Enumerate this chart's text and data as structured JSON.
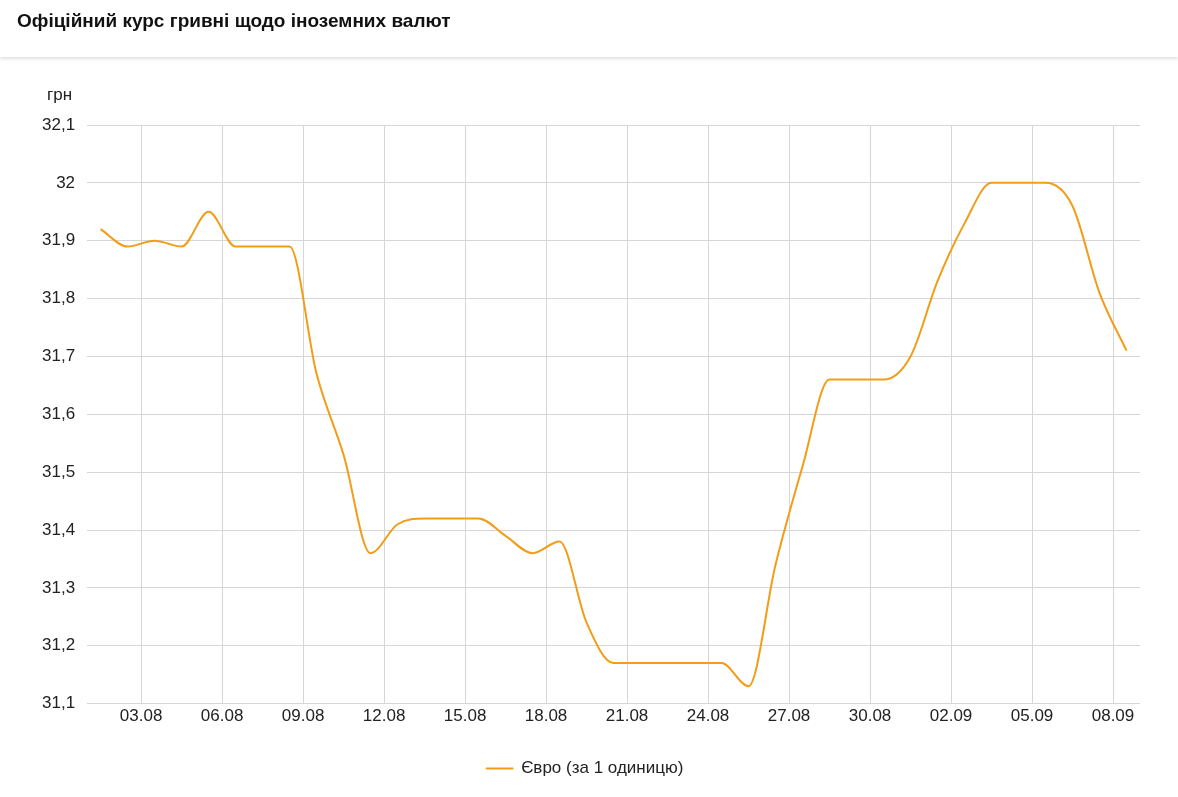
{
  "chart_data": {
    "type": "line",
    "title": "Офіційний курс гривні щодо іноземних валют",
    "ylabel": "грн",
    "x": [
      "--08-01T12:00",
      "--08-02T12:00",
      "--08-03T12:00",
      "--08-04T12:00",
      "--08-05T12:00",
      "--08-06T12:00",
      "--08-07T12:00",
      "--08-08T12:00",
      "--08-09T12:00",
      "--08-10T12:00",
      "--08-11T12:00",
      "--08-12T12:00",
      "--08-13T12:00",
      "--08-14T12:00",
      "--08-15T12:00",
      "--08-16T12:00",
      "--08-17T12:00",
      "--08-18T12:00",
      "--08-19T12:00",
      "--08-20T12:00",
      "--08-21T12:00",
      "--08-22T12:00",
      "--08-23T12:00",
      "--08-24T12:00",
      "--08-25T12:00",
      "--08-26T12:00",
      "--08-27T12:00",
      "--08-28T12:00",
      "--08-29T12:00",
      "--08-30T12:00",
      "--08-31T12:00",
      "--09-01T12:00",
      "--09-02T12:00",
      "--09-03T12:00",
      "--09-04T12:00",
      "--09-05T12:00",
      "--09-06T12:00",
      "--09-07T12:00",
      "--09-08T12:00"
    ],
    "series": [
      {
        "name": "Євро (за 1 одиницю)",
        "color": "#f29d17",
        "values": [
          31.92,
          31.89,
          31.9,
          31.89,
          31.95,
          31.89,
          31.89,
          31.89,
          31.67,
          31.53,
          31.36,
          31.41,
          31.42,
          31.42,
          31.42,
          31.39,
          31.36,
          31.38,
          31.24,
          31.17,
          31.17,
          31.17,
          31.17,
          31.17,
          31.13,
          31.34,
          31.51,
          31.66,
          31.66,
          31.66,
          31.7,
          31.83,
          31.93,
          32.0,
          32.0,
          32.0,
          31.96,
          31.81,
          31.71
        ]
      }
    ],
    "xlim": [
      "--08-01T00:00",
      "--09-09T00:00"
    ],
    "xticks": [
      {
        "value": "--08-03",
        "label": "03.08"
      },
      {
        "value": "--08-06",
        "label": "06.08"
      },
      {
        "value": "--08-09",
        "label": "09.08"
      },
      {
        "value": "--08-12",
        "label": "12.08"
      },
      {
        "value": "--08-15",
        "label": "15.08"
      },
      {
        "value": "--08-18",
        "label": "18.08"
      },
      {
        "value": "--08-21",
        "label": "21.08"
      },
      {
        "value": "--08-24",
        "label": "24.08"
      },
      {
        "value": "--08-27",
        "label": "27.08"
      },
      {
        "value": "--08-30",
        "label": "30.08"
      },
      {
        "value": "--09-02",
        "label": "02.09"
      },
      {
        "value": "--09-05",
        "label": "05.09"
      },
      {
        "value": "--09-08",
        "label": "08.09"
      }
    ],
    "ylim": [
      31.1,
      32.1
    ],
    "yticks": [
      {
        "value": 31.1,
        "label": "31,1"
      },
      {
        "value": 31.2,
        "label": "31,2"
      },
      {
        "value": 31.3,
        "label": "31,3"
      },
      {
        "value": 31.4,
        "label": "31,4"
      },
      {
        "value": 31.5,
        "label": "31,5"
      },
      {
        "value": 31.6,
        "label": "31,6"
      },
      {
        "value": 31.7,
        "label": "31,7"
      },
      {
        "value": 31.8,
        "label": "31,8"
      },
      {
        "value": 31.9,
        "label": "31,9"
      },
      {
        "value": 32,
        "label": "32"
      },
      {
        "value": 32.1,
        "label": "32,1"
      }
    ],
    "grid": true,
    "legend": "bottom",
    "marker": "none",
    "line_style": "solid"
  }
}
